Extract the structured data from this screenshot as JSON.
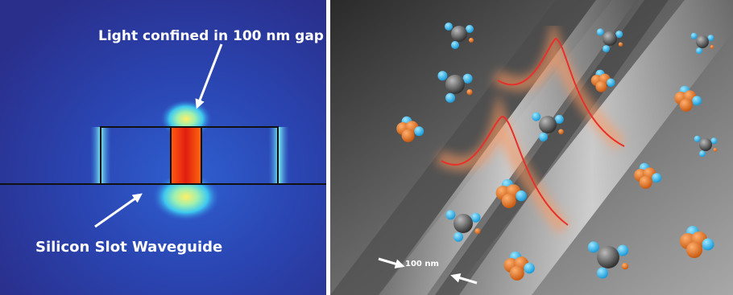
{
  "left_panel": {
    "top_label": "Light confined in 100 nm gap",
    "bottom_label": "Silicon Slot Waveguide"
  },
  "right_panel": {
    "scale_label": "100 nm"
  }
}
